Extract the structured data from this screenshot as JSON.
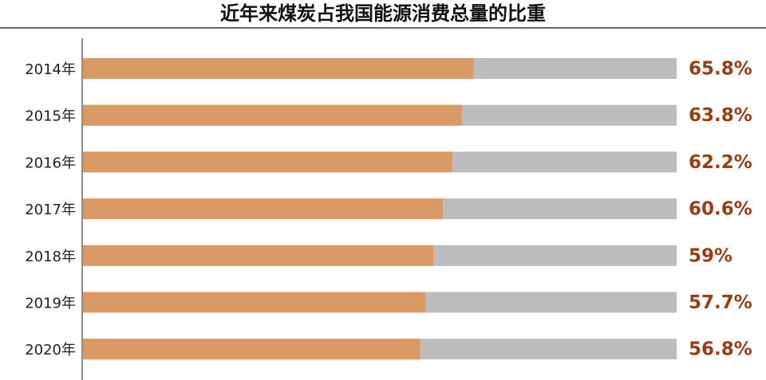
{
  "chart_data": {
    "type": "bar",
    "orientation": "horizontal",
    "title": "近年来煤炭占我国能源消费总量的比重",
    "categories": [
      "2014年",
      "2015年",
      "2016年",
      "2017年",
      "2018年",
      "2019年",
      "2020年"
    ],
    "values": [
      65.8,
      63.8,
      62.2,
      60.6,
      59,
      57.7,
      56.8
    ],
    "value_labels": [
      "65.8%",
      "63.8%",
      "62.2%",
      "60.6%",
      "59%",
      "57.7%",
      "56.8%"
    ],
    "color": "#d99a66",
    "track_color": "#bdbdbd",
    "label_color": "#9a3d12",
    "xlim": [
      0,
      100
    ]
  }
}
